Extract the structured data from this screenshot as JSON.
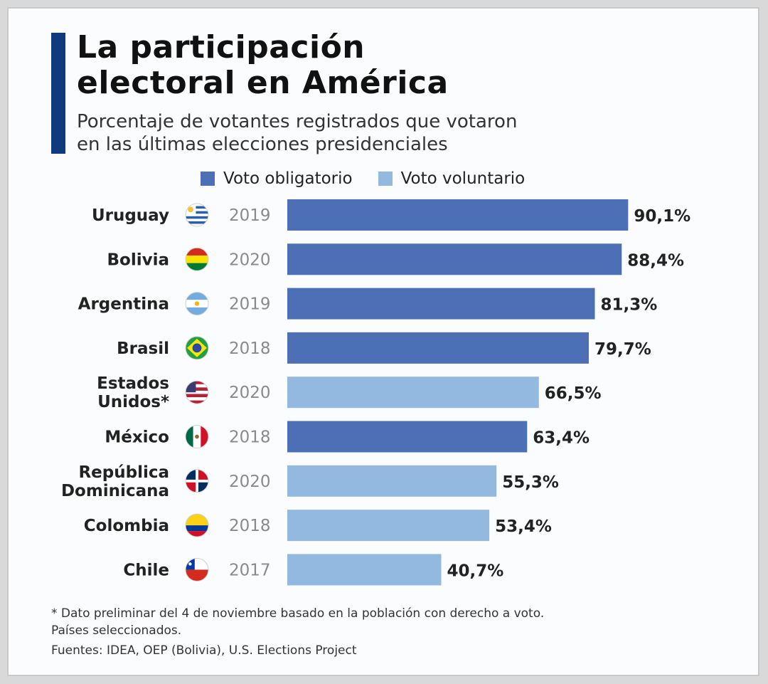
{
  "header": {
    "title_line1": "La participación",
    "title_line2": "electoral en América",
    "subtitle_line1": "Porcentaje de votantes registrados que votaron",
    "subtitle_line2": "en las últimas elecciones presidenciales"
  },
  "colors": {
    "accent": "#0f3b7d",
    "obligatorio": "#4d6fb6",
    "voluntario": "#93b9e1"
  },
  "chart_data": {
    "type": "bar",
    "orientation": "horizontal",
    "title": "La participación electoral en América",
    "subtitle": "Porcentaje de votantes registrados que votaron en las últimas elecciones presidenciales",
    "legend": [
      {
        "key": "obligatorio",
        "label": "Voto obligatorio"
      },
      {
        "key": "voluntario",
        "label": "Voto voluntario"
      }
    ],
    "legend_position": "top",
    "grid": false,
    "xlim": [
      0,
      100
    ],
    "rows": [
      {
        "lines": [
          "Uruguay"
        ],
        "flag": "uruguay-flag-icon",
        "year": "2019",
        "value": 90.1,
        "label": "90,1%",
        "type": "obligatorio"
      },
      {
        "lines": [
          "Bolivia"
        ],
        "flag": "bolivia-flag-icon",
        "year": "2020",
        "value": 88.4,
        "label": "88,4%",
        "type": "obligatorio"
      },
      {
        "lines": [
          "Argentina"
        ],
        "flag": "argentina-flag-icon",
        "year": "2019",
        "value": 81.3,
        "label": "81,3%",
        "type": "obligatorio"
      },
      {
        "lines": [
          "Brasil"
        ],
        "flag": "brazil-flag-icon",
        "year": "2018",
        "value": 79.7,
        "label": "79,7%",
        "type": "obligatorio"
      },
      {
        "lines": [
          "Estados",
          "Unidos*"
        ],
        "flag": "usa-flag-icon",
        "year": "2020",
        "value": 66.5,
        "label": "66,5%",
        "type": "voluntario"
      },
      {
        "lines": [
          "México"
        ],
        "flag": "mexico-flag-icon",
        "year": "2018",
        "value": 63.4,
        "label": "63,4%",
        "type": "obligatorio"
      },
      {
        "lines": [
          "República",
          "Dominicana"
        ],
        "flag": "dominican-republic-flag-icon",
        "year": "2020",
        "value": 55.3,
        "label": "55,3%",
        "type": "voluntario"
      },
      {
        "lines": [
          "Colombia"
        ],
        "flag": "colombia-flag-icon",
        "year": "2018",
        "value": 53.4,
        "label": "53,4%",
        "type": "voluntario"
      },
      {
        "lines": [
          "Chile"
        ],
        "flag": "chile-flag-icon",
        "year": "2017",
        "value": 40.7,
        "label": "40,7%",
        "type": "voluntario"
      }
    ]
  },
  "footer": {
    "note_line1": "* Dato preliminar del 4 de noviembre basado en la población con derecho a voto.",
    "note_line2": "Países seleccionados.",
    "source": "Fuentes: IDEA, OEP (Bolivia), U.S. Elections Project"
  }
}
